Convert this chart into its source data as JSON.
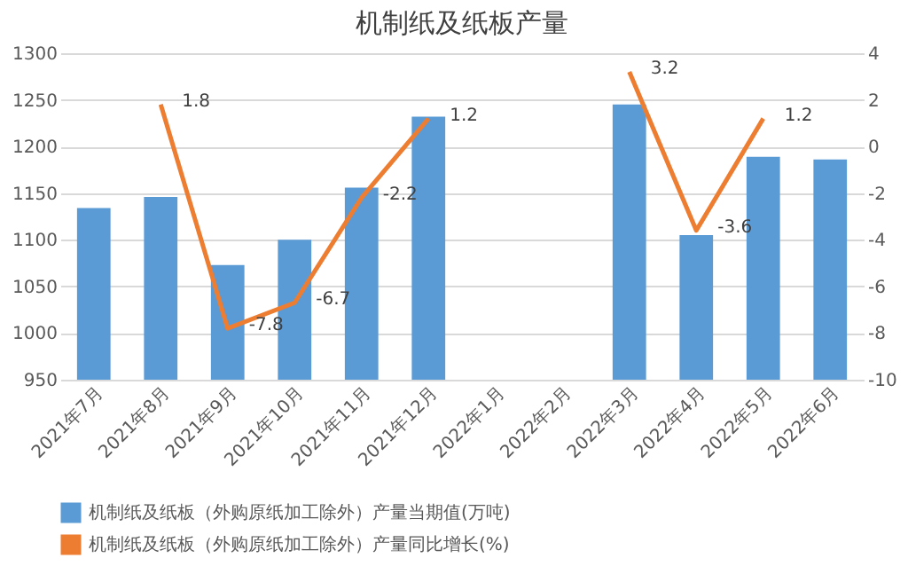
{
  "chart_data": {
    "type": "bar",
    "title": "机制纸及纸板产量",
    "categories": [
      "2021年7月",
      "2021年8月",
      "2021年9月",
      "2021年10月",
      "2021年11月",
      "2021年12月",
      "2022年1月",
      "2022年2月",
      "2022年3月",
      "2022年4月",
      "2022年5月",
      "2022年6月"
    ],
    "series": [
      {
        "name": "机制纸及纸板（外购原纸加工除外）产量当期值(万吨)",
        "color": "#5b9bd5",
        "values": [
          1134,
          1146,
          1073,
          1100,
          1156,
          1232,
          null,
          null,
          1245,
          1105,
          1189,
          1186
        ]
      },
      {
        "name": "机制纸及纸板（外购原纸加工除外）产量同比增长(%)",
        "type": "line",
        "axis": "y2",
        "color": "#ed7d31",
        "values": [
          null,
          1.8,
          -7.8,
          -6.7,
          -2.2,
          1.2,
          null,
          null,
          3.2,
          -3.6,
          1.2,
          null
        ],
        "value_labels": [
          null,
          "1.8",
          "-7.8",
          "-6.7",
          "-2.2",
          "1.2",
          null,
          null,
          "3.2",
          "-3.6",
          "1.2",
          null
        ]
      }
    ],
    "ylim": [
      950,
      1300
    ],
    "yticks": [
      950,
      1000,
      1050,
      1100,
      1150,
      1200,
      1250,
      1300
    ],
    "y2lim": [
      -10,
      4
    ],
    "y2ticks": [
      -10,
      -8,
      -6,
      -4,
      -2,
      0,
      2,
      4
    ],
    "grid": "y",
    "legend": "bottom",
    "marker": "none"
  }
}
